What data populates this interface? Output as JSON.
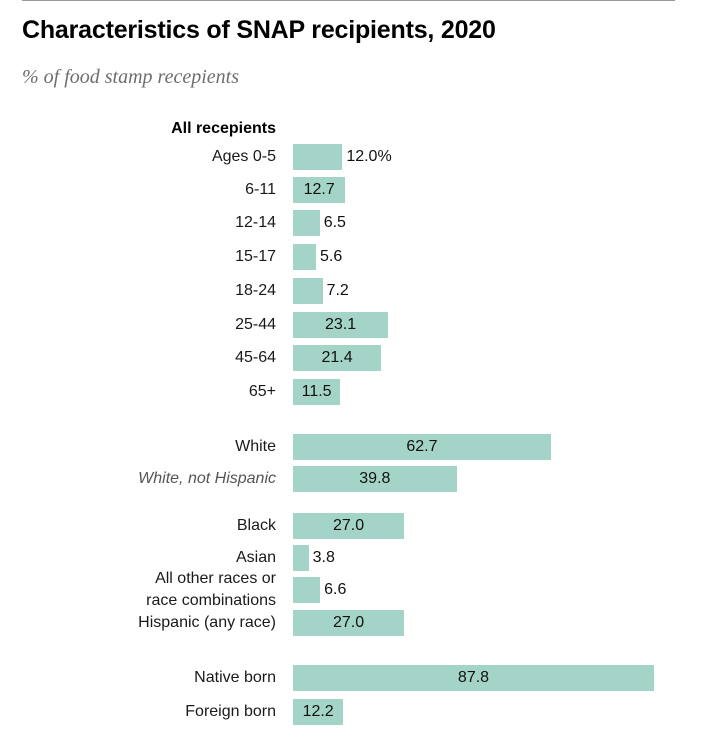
{
  "title": "Characteristics of SNAP recipients, 2020",
  "subtitle": "% of food stamp recepients",
  "chart_data": {
    "type": "bar",
    "orientation": "horizontal",
    "title": "Characteristics of SNAP recipients, 2020",
    "subtitle": "% of food stamp recepients",
    "group_header": "All recepients",
    "bar_color": "#a4d4c7",
    "xlim": [
      0,
      100
    ],
    "categories": [
      "Ages 0-5",
      "6-11",
      "12-14",
      "15-17",
      "18-24",
      "25-44",
      "45-64",
      "65+",
      "White",
      "White, not Hispanic",
      "Black",
      "Asian",
      "All other races or race combinations",
      "Hispanic (any race)",
      "Native born",
      "Foreign born"
    ],
    "values": [
      12.0,
      12.7,
      6.5,
      5.6,
      7.2,
      23.1,
      21.4,
      11.5,
      62.7,
      39.8,
      27.0,
      3.8,
      6.6,
      27.0,
      87.8,
      12.2
    ],
    "value_labels": [
      "12.0%",
      "12.7",
      "6.5",
      "5.6",
      "7.2",
      "23.1",
      "21.4",
      "11.5",
      "62.7",
      "39.8",
      "27.0",
      "3.8",
      "6.6",
      "27.0",
      "87.8",
      "12.2"
    ],
    "label_lines": [
      [
        "Ages 0-5"
      ],
      [
        "6-11"
      ],
      [
        "12-14"
      ],
      [
        "15-17"
      ],
      [
        "18-24"
      ],
      [
        "25-44"
      ],
      [
        "45-64"
      ],
      [
        "65+"
      ],
      [
        "White"
      ],
      [
        "White, not Hispanic"
      ],
      [
        "Black"
      ],
      [
        "Asian"
      ],
      [
        "All other races or",
        "race combinations"
      ],
      [
        "Hispanic (any race)"
      ],
      [
        "Native born"
      ],
      [
        "Foreign born"
      ]
    ],
    "italic_rows": [
      "White, not Hispanic"
    ]
  }
}
